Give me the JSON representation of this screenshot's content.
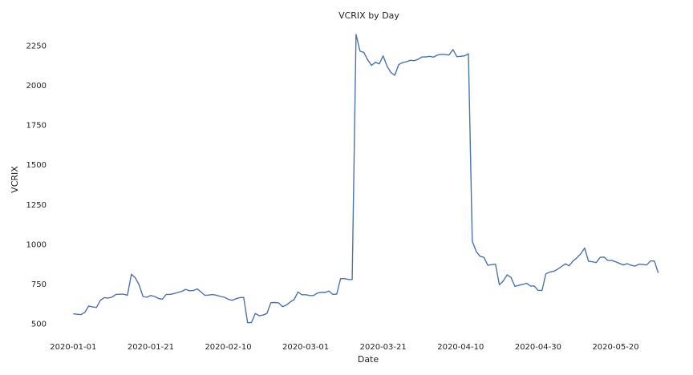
{
  "chart_data": {
    "type": "line",
    "title": "VCRIX by Day",
    "xlabel": "Date",
    "ylabel": "VCRIX",
    "x_start": "2020-01-01",
    "xlim": [
      "2019-12-28",
      "2020-06-04"
    ],
    "ylim": [
      420,
      2360
    ],
    "x_ticks": [
      "2020-01-01",
      "2020-01-21",
      "2020-02-10",
      "2020-03-01",
      "2020-03-21",
      "2020-04-10",
      "2020-04-30",
      "2020-05-20"
    ],
    "y_ticks": [
      500,
      750,
      1000,
      1250,
      1500,
      1750,
      2000,
      2250
    ],
    "grid": false,
    "legend": "none",
    "series_color": "#4c72b0",
    "series": [
      {
        "values": [
          [
            0,
            563
          ],
          [
            1,
            560
          ],
          [
            2,
            558
          ],
          [
            3,
            572
          ],
          [
            4,
            612
          ],
          [
            5,
            606
          ],
          [
            6,
            603
          ],
          [
            7,
            648
          ],
          [
            8,
            665
          ],
          [
            9,
            662
          ],
          [
            10,
            668
          ],
          [
            11,
            685
          ],
          [
            12,
            686
          ],
          [
            13,
            686
          ],
          [
            14,
            680
          ],
          [
            15,
            812
          ],
          [
            16,
            790
          ],
          [
            17,
            745
          ],
          [
            18,
            672
          ],
          [
            19,
            667
          ],
          [
            20,
            678
          ],
          [
            21,
            672
          ],
          [
            22,
            660
          ],
          [
            23,
            655
          ],
          [
            24,
            685
          ],
          [
            25,
            685
          ],
          [
            26,
            690
          ],
          [
            27,
            697
          ],
          [
            28,
            704
          ],
          [
            29,
            717
          ],
          [
            30,
            708
          ],
          [
            31,
            709
          ],
          [
            32,
            720
          ],
          [
            33,
            700
          ],
          [
            34,
            679
          ],
          [
            35,
            681
          ],
          [
            36,
            684
          ],
          [
            37,
            680
          ],
          [
            38,
            672
          ],
          [
            39,
            667
          ],
          [
            40,
            655
          ],
          [
            41,
            648
          ],
          [
            42,
            658
          ],
          [
            43,
            665
          ],
          [
            44,
            666
          ],
          [
            45,
            507
          ],
          [
            46,
            508
          ],
          [
            47,
            565
          ],
          [
            48,
            551
          ],
          [
            49,
            555
          ],
          [
            50,
            565
          ],
          [
            51,
            633
          ],
          [
            52,
            634
          ],
          [
            53,
            632
          ],
          [
            54,
            608
          ],
          [
            55,
            618
          ],
          [
            56,
            637
          ],
          [
            57,
            652
          ],
          [
            58,
            700
          ],
          [
            59,
            683
          ],
          [
            60,
            683
          ],
          [
            61,
            678
          ],
          [
            62,
            678
          ],
          [
            63,
            693
          ],
          [
            64,
            698
          ],
          [
            65,
            697
          ],
          [
            66,
            706
          ],
          [
            67,
            685
          ],
          [
            68,
            687
          ],
          [
            69,
            784
          ],
          [
            70,
            785
          ],
          [
            71,
            779
          ],
          [
            72,
            779
          ],
          [
            73,
            2320
          ],
          [
            74,
            2215
          ],
          [
            75,
            2207
          ],
          [
            76,
            2160
          ],
          [
            77,
            2125
          ],
          [
            78,
            2145
          ],
          [
            79,
            2135
          ],
          [
            80,
            2185
          ],
          [
            81,
            2120
          ],
          [
            82,
            2080
          ],
          [
            83,
            2063
          ],
          [
            84,
            2130
          ],
          [
            85,
            2143
          ],
          [
            86,
            2148
          ],
          [
            87,
            2157
          ],
          [
            88,
            2155
          ],
          [
            89,
            2163
          ],
          [
            90,
            2178
          ],
          [
            91,
            2178
          ],
          [
            92,
            2182
          ],
          [
            93,
            2177
          ],
          [
            94,
            2190
          ],
          [
            95,
            2195
          ],
          [
            96,
            2193
          ],
          [
            97,
            2190
          ],
          [
            98,
            2225
          ],
          [
            99,
            2180
          ],
          [
            100,
            2182
          ],
          [
            101,
            2185
          ],
          [
            102,
            2198
          ],
          [
            103,
            1020
          ],
          [
            104,
            955
          ],
          [
            105,
            925
          ],
          [
            106,
            918
          ],
          [
            107,
            868
          ],
          [
            108,
            872
          ],
          [
            109,
            875
          ],
          [
            110,
            745
          ],
          [
            111,
            770
          ],
          [
            112,
            808
          ],
          [
            113,
            792
          ],
          [
            114,
            735
          ],
          [
            115,
            742
          ],
          [
            116,
            748
          ],
          [
            117,
            755
          ],
          [
            118,
            738
          ],
          [
            119,
            738
          ],
          [
            120,
            710
          ],
          [
            121,
            710
          ],
          [
            122,
            815
          ],
          [
            123,
            825
          ],
          [
            124,
            830
          ],
          [
            125,
            843
          ],
          [
            126,
            860
          ],
          [
            127,
            877
          ],
          [
            128,
            865
          ],
          [
            129,
            895
          ],
          [
            130,
            915
          ],
          [
            131,
            940
          ],
          [
            132,
            977
          ],
          [
            133,
            893
          ],
          [
            134,
            890
          ],
          [
            135,
            885
          ],
          [
            136,
            918
          ],
          [
            137,
            920
          ],
          [
            138,
            898
          ],
          [
            139,
            898
          ],
          [
            140,
            890
          ],
          [
            141,
            880
          ],
          [
            142,
            870
          ],
          [
            143,
            878
          ],
          [
            144,
            868
          ],
          [
            145,
            863
          ],
          [
            146,
            875
          ],
          [
            147,
            873
          ],
          [
            148,
            870
          ],
          [
            149,
            895
          ],
          [
            150,
            895
          ],
          [
            151,
            820
          ]
        ]
      }
    ]
  }
}
